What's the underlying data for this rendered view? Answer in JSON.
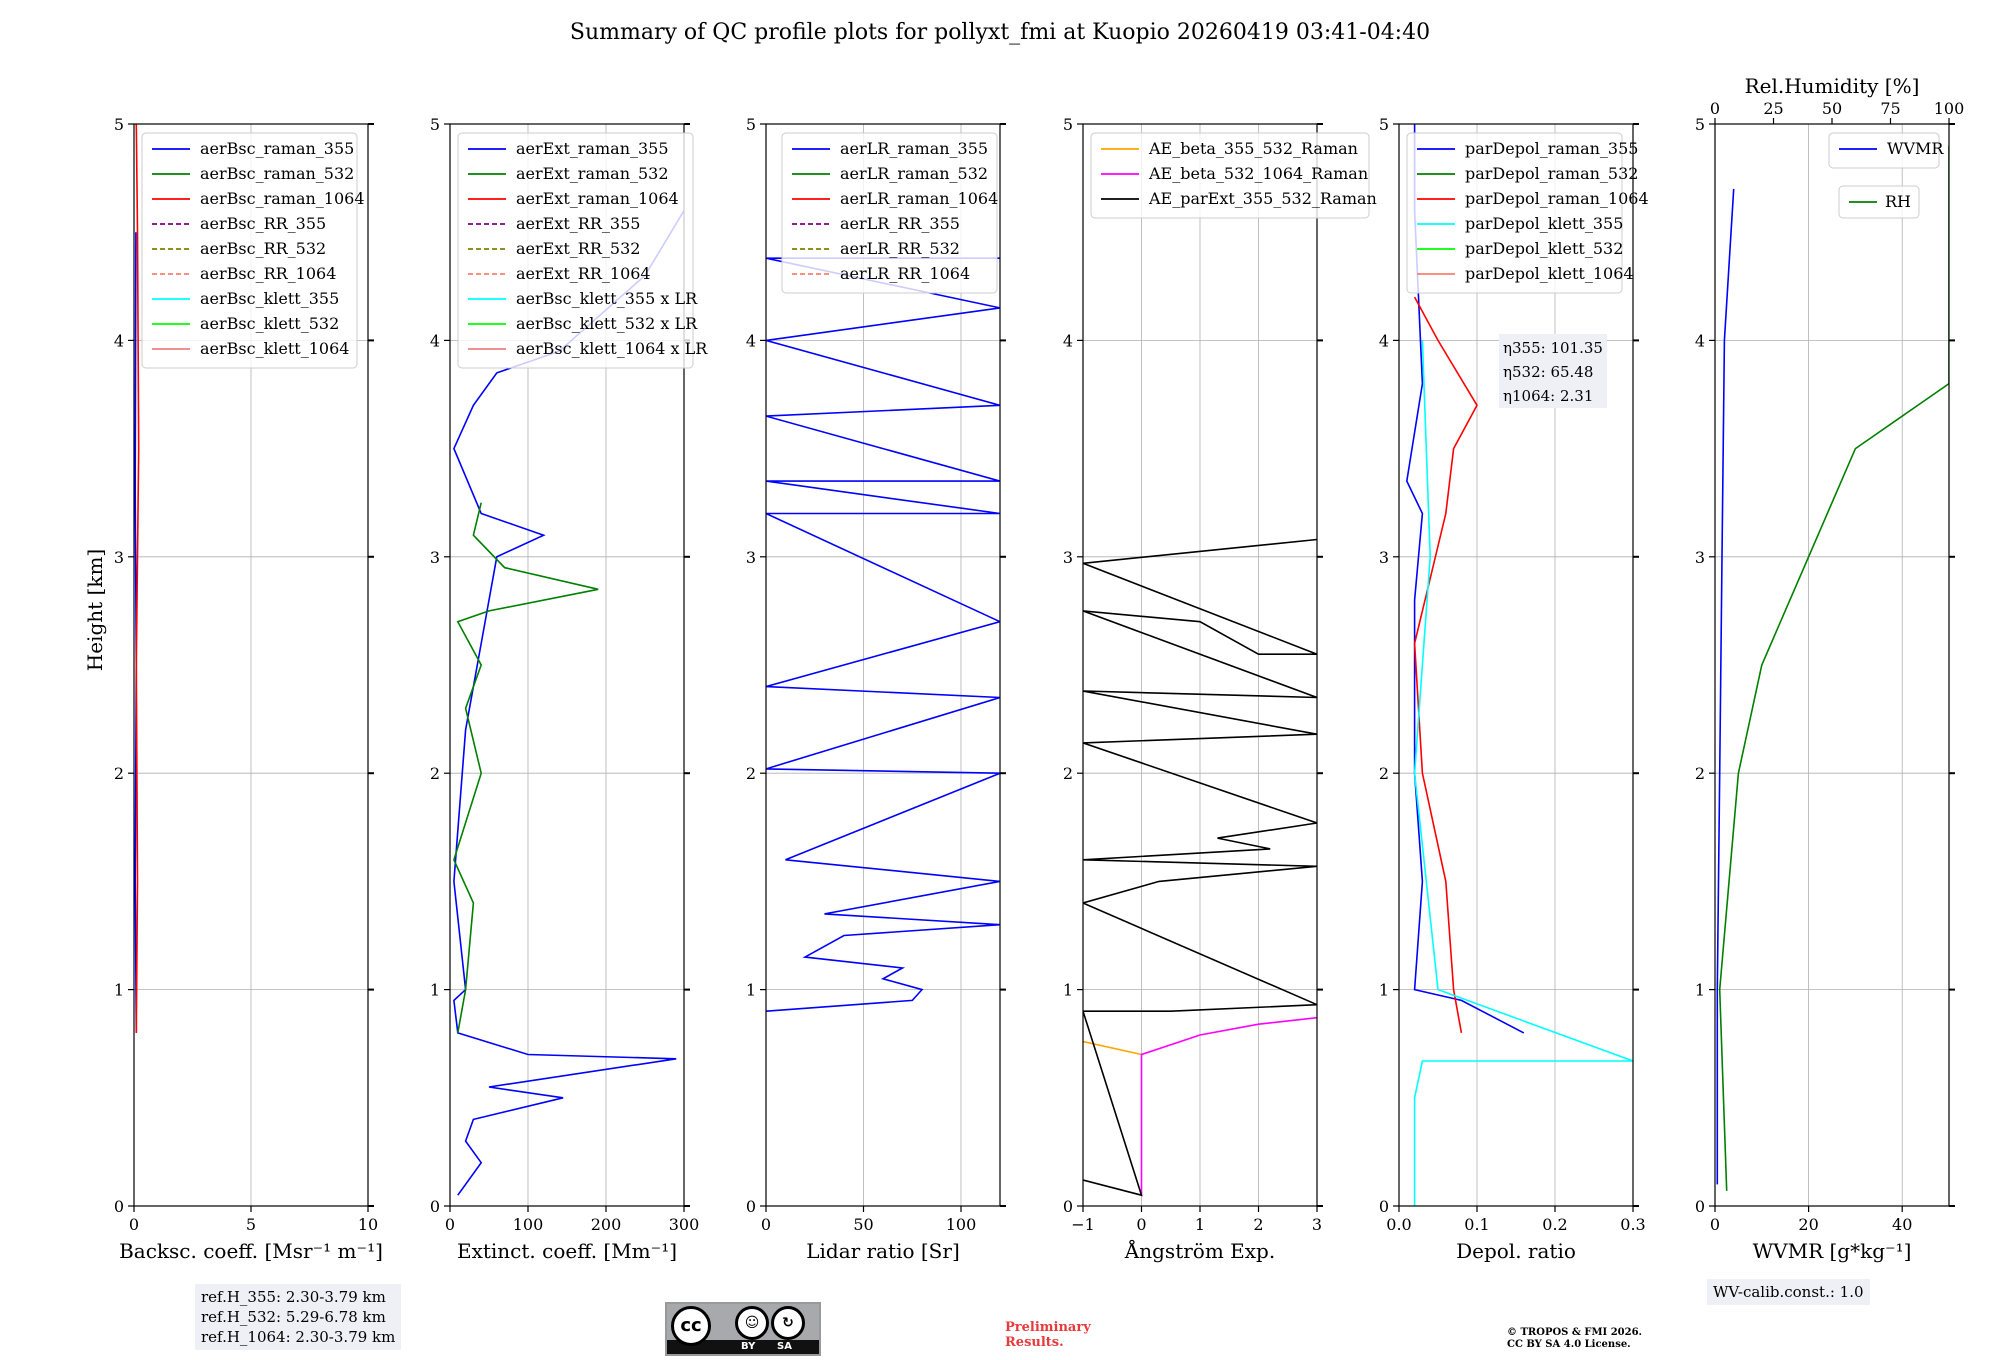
{
  "title": "Summary of QC profile plots for pollyxt_fmi at Kuopio 20260419 03:41-04:40",
  "ylabel": "Height [km]",
  "notes": {
    "refh_355": "ref.H_355: 2.30-3.79 km",
    "refh_532": "ref.H_532: 5.29-6.78 km",
    "refh_1064": "ref.H_1064: 2.30-3.79 km",
    "wv_calib": "WV-calib.const.: 1.0",
    "preliminary_line1": "Preliminary",
    "preliminary_line2": "Results.",
    "copyright_line1": "© TROPOS & FMI 2026.",
    "copyright_line2": "CC BY SA 4.0 License.",
    "cc_by": "BY",
    "cc_sa": "SA",
    "cc_label": "cc"
  },
  "colors": {
    "blue": "#0000ff",
    "green": "#008000",
    "red": "#ff0000",
    "purple": "#800080",
    "olive": "#808000",
    "salmon": "#fa8072",
    "cyan": "#00ffff",
    "lime": "#00ff00",
    "lightcoral": "#f08080",
    "orange": "#ffa500",
    "magenta": "#ff00ff",
    "black": "#000000",
    "grid": "#b0b0b0"
  },
  "chart_data": [
    {
      "type": "line",
      "xlabel": "Backsc. coeff. [Msr⁻¹ m⁻¹]",
      "xlim": [
        0,
        10
      ],
      "ylim": [
        0,
        5
      ],
      "xticks": [
        0,
        5,
        10
      ],
      "yticks": [
        0,
        1,
        2,
        3,
        4,
        5
      ],
      "legend": [
        "aerBsc_raman_355",
        "aerBsc_raman_532",
        "aerBsc_raman_1064",
        "aerBsc_RR_355",
        "aerBsc_RR_532",
        "aerBsc_RR_1064",
        "aerBsc_klett_355",
        "aerBsc_klett_532",
        "aerBsc_klett_1064"
      ],
      "legend_colors": [
        "blue",
        "green",
        "red",
        "purple",
        "olive",
        "salmon",
        "cyan",
        "lime",
        "lightcoral"
      ],
      "legend_dashed": [
        false,
        false,
        false,
        true,
        true,
        true,
        false,
        false,
        false
      ],
      "series": [
        {
          "name": "aerBsc_raman_355",
          "color": "blue",
          "values": [
            [
              0.1,
              0.8
            ],
            [
              0.05,
              1.5
            ],
            [
              0.1,
              2.5
            ],
            [
              0.05,
              3.3
            ],
            [
              0.08,
              4.5
            ]
          ]
        },
        {
          "name": "aerBsc_raman_1064",
          "color": "red",
          "values": [
            [
              0.1,
              0.8
            ],
            [
              0.15,
              1.5
            ],
            [
              0.1,
              2.5
            ],
            [
              0.2,
              3.5
            ],
            [
              0.15,
              4.5
            ],
            [
              0.1,
              5.0
            ]
          ]
        }
      ]
    },
    {
      "type": "line",
      "xlabel": "Extinct. coeff. [Mm⁻¹]",
      "xlim": [
        0,
        300
      ],
      "ylim": [
        0,
        5
      ],
      "xticks": [
        0,
        100,
        200,
        300
      ],
      "yticks": [
        0,
        1,
        2,
        3,
        4,
        5
      ],
      "legend": [
        "aerExt_raman_355",
        "aerExt_raman_532",
        "aerExt_raman_1064",
        "aerExt_RR_355",
        "aerExt_RR_532",
        "aerExt_RR_1064",
        "aerBsc_klett_355 x LR",
        "aerBsc_klett_532 x LR",
        "aerBsc_klett_1064 x LR"
      ],
      "legend_colors": [
        "blue",
        "green",
        "red",
        "purple",
        "olive",
        "salmon",
        "cyan",
        "lime",
        "lightcoral"
      ],
      "legend_dashed": [
        false,
        false,
        false,
        true,
        true,
        true,
        false,
        false,
        false
      ],
      "series": [
        {
          "name": "aerExt_raman_355",
          "color": "blue",
          "values": [
            [
              10,
              0.05
            ],
            [
              40,
              0.2
            ],
            [
              20,
              0.3
            ],
            [
              30,
              0.4
            ],
            [
              145,
              0.5
            ],
            [
              50,
              0.55
            ],
            [
              290,
              0.68
            ],
            [
              100,
              0.7
            ],
            [
              10,
              0.8
            ],
            [
              5,
              0.95
            ],
            [
              20,
              1.0
            ],
            [
              5,
              1.5
            ],
            [
              20,
              2.2
            ],
            [
              40,
              2.6
            ],
            [
              60,
              3.0
            ],
            [
              120,
              3.1
            ],
            [
              40,
              3.2
            ],
            [
              5,
              3.5
            ],
            [
              30,
              3.7
            ],
            [
              60,
              3.85
            ],
            [
              140,
              3.95
            ],
            [
              250,
              4.3
            ],
            [
              300,
              4.6
            ]
          ]
        },
        {
          "name": "aerExt_raman_532",
          "color": "green",
          "values": [
            [
              10,
              0.8
            ],
            [
              20,
              1.0
            ],
            [
              30,
              1.4
            ],
            [
              5,
              1.6
            ],
            [
              40,
              2.0
            ],
            [
              20,
              2.3
            ],
            [
              40,
              2.5
            ],
            [
              10,
              2.7
            ],
            [
              50,
              2.75
            ],
            [
              190,
              2.85
            ],
            [
              70,
              2.95
            ],
            [
              30,
              3.1
            ],
            [
              40,
              3.25
            ]
          ]
        }
      ]
    },
    {
      "type": "line",
      "xlabel": "Lidar ratio [Sr]",
      "xlim": [
        0,
        120
      ],
      "ylim": [
        0,
        5
      ],
      "xticks": [
        0,
        50,
        100
      ],
      "yticks": [
        0,
        1,
        2,
        3,
        4,
        5
      ],
      "legend": [
        "aerLR_raman_355",
        "aerLR_raman_532",
        "aerLR_raman_1064",
        "aerLR_RR_355",
        "aerLR_RR_532",
        "aerLR_RR_1064"
      ],
      "legend_colors": [
        "blue",
        "green",
        "red",
        "purple",
        "olive",
        "salmon"
      ],
      "legend_dashed": [
        false,
        false,
        false,
        true,
        true,
        true
      ],
      "series": [
        {
          "name": "aerLR_raman_355",
          "color": "blue",
          "values": [
            [
              0,
              0.9
            ],
            [
              75,
              0.95
            ],
            [
              80,
              1.0
            ],
            [
              60,
              1.05
            ],
            [
              70,
              1.1
            ],
            [
              20,
              1.15
            ],
            [
              40,
              1.25
            ],
            [
              120,
              1.3
            ],
            [
              30,
              1.35
            ],
            [
              120,
              1.5
            ],
            [
              10,
              1.6
            ],
            [
              120,
              2.0
            ],
            [
              0,
              2.02
            ],
            [
              120,
              2.35
            ],
            [
              0,
              2.4
            ],
            [
              120,
              2.7
            ],
            [
              0,
              3.2
            ],
            [
              120,
              3.2
            ],
            [
              0,
              3.35
            ],
            [
              120,
              3.35
            ],
            [
              0,
              3.65
            ],
            [
              120,
              3.7
            ],
            [
              0,
              4.0
            ],
            [
              120,
              4.15
            ],
            [
              0,
              4.38
            ],
            [
              120,
              4.38
            ]
          ]
        }
      ]
    },
    {
      "type": "line",
      "xlabel": "Ångström Exp.",
      "xlim": [
        -1,
        3
      ],
      "ylim": [
        0,
        5
      ],
      "xticks": [
        -1,
        0,
        1,
        2,
        3
      ],
      "yticks": [
        0,
        1,
        2,
        3,
        4,
        5
      ],
      "legend": [
        "AE_beta_355_532_Raman",
        "AE_beta_532_1064_Raman",
        "AE_parExt_355_532_Raman"
      ],
      "legend_colors": [
        "orange",
        "magenta",
        "black"
      ],
      "legend_dashed": [
        false,
        false,
        false
      ],
      "series": [
        {
          "name": "AE_beta_355_532_Raman",
          "color": "orange",
          "values": [
            [
              -1,
              0.76
            ],
            [
              0,
              0.7
            ]
          ]
        },
        {
          "name": "AE_beta_532_1064_Raman",
          "color": "magenta",
          "values": [
            [
              0,
              0.05
            ],
            [
              0,
              0.7
            ],
            [
              1,
              0.79
            ],
            [
              2,
              0.84
            ],
            [
              3,
              0.87
            ]
          ]
        },
        {
          "name": "AE_parExt_355_532_Raman",
          "color": "black",
          "values": [
            [
              -1,
              0.12
            ],
            [
              0,
              0.05
            ],
            [
              -1,
              0.9
            ],
            [
              0.5,
              0.9
            ],
            [
              3,
              0.93
            ],
            [
              -1,
              1.4
            ],
            [
              0.3,
              1.5
            ],
            [
              3,
              1.57
            ],
            [
              -1,
              1.6
            ],
            [
              2.2,
              1.65
            ],
            [
              1.3,
              1.7
            ],
            [
              3,
              1.77
            ],
            [
              -1,
              2.14
            ],
            [
              3,
              2.18
            ],
            [
              -1,
              2.38
            ],
            [
              3,
              2.35
            ],
            [
              -1,
              2.75
            ],
            [
              1,
              2.7
            ],
            [
              2,
              2.55
            ],
            [
              3,
              2.55
            ],
            [
              -1,
              2.97
            ],
            [
              3,
              3.08
            ]
          ]
        }
      ]
    },
    {
      "type": "line",
      "xlabel": "Depol. ratio",
      "xlim": [
        0,
        0.3
      ],
      "ylim": [
        0,
        5
      ],
      "xticks": [
        0.0,
        0.1,
        0.2,
        0.3
      ],
      "yticks": [
        0,
        1,
        2,
        3,
        4,
        5
      ],
      "legend": [
        "parDepol_raman_355",
        "parDepol_raman_532",
        "parDepol_raman_1064",
        "parDepol_klett_355",
        "parDepol_klett_532",
        "parDepol_klett_1064"
      ],
      "legend_colors": [
        "blue",
        "green",
        "red",
        "cyan",
        "lime",
        "salmon"
      ],
      "legend_dashed": [
        false,
        false,
        false,
        false,
        false,
        false
      ],
      "annotations": [
        "η355: 101.35",
        "η532: 65.48",
        "η1064: 2.31"
      ],
      "series": [
        {
          "name": "parDepol_raman_355",
          "color": "blue",
          "values": [
            [
              0.16,
              0.8
            ],
            [
              0.08,
              0.95
            ],
            [
              0.02,
              1.0
            ],
            [
              0.03,
              1.5
            ],
            [
              0.02,
              2.0
            ],
            [
              0.02,
              2.8
            ],
            [
              0.03,
              3.2
            ],
            [
              0.01,
              3.35
            ],
            [
              0.03,
              3.8
            ],
            [
              0.02,
              4.6
            ],
            [
              0.02,
              5.0
            ]
          ]
        },
        {
          "name": "parDepol_raman_1064",
          "color": "red",
          "values": [
            [
              0.08,
              0.8
            ],
            [
              0.07,
              1.0
            ],
            [
              0.06,
              1.5
            ],
            [
              0.03,
              2.0
            ],
            [
              0.02,
              2.6
            ],
            [
              0.06,
              3.2
            ],
            [
              0.07,
              3.5
            ],
            [
              0.1,
              3.7
            ],
            [
              0.05,
              4.0
            ],
            [
              0.02,
              4.2
            ]
          ]
        },
        {
          "name": "parDepol_klett_355",
          "color": "cyan",
          "values": [
            [
              0.02,
              0.0
            ],
            [
              0.02,
              0.5
            ],
            [
              0.03,
              0.67
            ],
            [
              0.3,
              0.67
            ],
            [
              0.05,
              1.0
            ],
            [
              0.02,
              2.0
            ],
            [
              0.04,
              3.0
            ],
            [
              0.03,
              4.0
            ]
          ]
        }
      ]
    },
    {
      "type": "line",
      "xlabel": "WVMR [g*kg⁻¹]",
      "x2label": "Rel.Humidity [%]",
      "xlim": [
        0,
        50
      ],
      "x2lim": [
        0,
        100
      ],
      "ylim": [
        0,
        5
      ],
      "xticks": [
        0,
        20,
        40
      ],
      "x2ticks": [
        0,
        25,
        50,
        75,
        100
      ],
      "yticks": [
        0,
        1,
        2,
        3,
        4,
        5
      ],
      "legend": [
        "WVMR"
      ],
      "legend2": [
        "RH"
      ],
      "legend_colors": [
        "blue"
      ],
      "legend2_colors": [
        "green"
      ],
      "series": [
        {
          "name": "WVMR",
          "color": "blue",
          "values": [
            [
              0.5,
              0.1
            ],
            [
              0.5,
              1.0
            ],
            [
              1,
              2.0
            ],
            [
              1.5,
              3.0
            ],
            [
              2,
              4.0
            ],
            [
              4,
              4.7
            ]
          ]
        },
        {
          "name": "RH",
          "color": "green",
          "values": [
            [
              5,
              0.07
            ],
            [
              2,
              1.0
            ],
            [
              10,
              2.0
            ],
            [
              20,
              2.5
            ],
            [
              40,
              3.0
            ],
            [
              60,
              3.5
            ],
            [
              100,
              3.8
            ],
            [
              100,
              4.4
            ],
            [
              100,
              4.9
            ]
          ]
        }
      ]
    }
  ]
}
